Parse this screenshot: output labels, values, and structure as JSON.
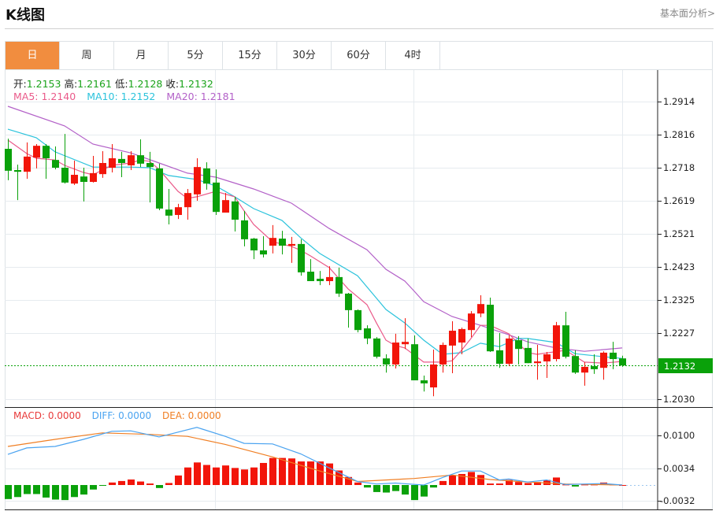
{
  "header": {
    "title": "K线图",
    "analysis_link": "基本面分析>"
  },
  "tabs": [
    {
      "label": "日",
      "active": true
    },
    {
      "label": "周"
    },
    {
      "label": "月"
    },
    {
      "label": "5分"
    },
    {
      "label": "15分"
    },
    {
      "label": "30分"
    },
    {
      "label": "60分"
    },
    {
      "label": "4时"
    }
  ],
  "ohlc": {
    "open_label": "开:",
    "open": "1.2153",
    "high_label": "高:",
    "high": "1.2161",
    "low_label": "低:",
    "low": "1.2128",
    "close_label": "收:",
    "close": "1.2132"
  },
  "ma_legend": {
    "ma5": "MA5:  1.2140",
    "ma10": "MA10:  1.2152",
    "ma20": "MA20:  1.2181"
  },
  "macd_legend": {
    "macd": "MACD: 0.0000",
    "diff": "DIFF: 0.0000",
    "dea": "DEA: 0.0000"
  },
  "colors": {
    "up": "#f2150a",
    "down": "#0aa10a",
    "ma5": "#ea5a8a",
    "ma10": "#2cc3dc",
    "ma20": "#b361c8",
    "diff": "#4aa3f0",
    "dea": "#f07f24",
    "accent": "#f18d3f"
  },
  "chart_data": [
    {
      "type": "candlestick",
      "title": "K线图",
      "price_axis_ticks": [
        "1.2914",
        "1.2816",
        "1.2718",
        "1.2619",
        "1.2521",
        "1.2423",
        "1.2325",
        "1.2227",
        "1.2030"
      ],
      "ylim": [
        1.203,
        1.2914
      ],
      "current_price": "1.2132",
      "ohlc": [
        [
          1.2774,
          1.2804,
          1.2681,
          1.2709
        ],
        [
          1.2711,
          1.2727,
          1.2622,
          1.2706
        ],
        [
          1.2706,
          1.2793,
          1.2685,
          1.2751
        ],
        [
          1.2748,
          1.2788,
          1.2716,
          1.2783
        ],
        [
          1.2783,
          1.2788,
          1.2685,
          1.2746
        ],
        [
          1.2741,
          1.2781,
          1.2713,
          1.2718
        ],
        [
          1.2718,
          1.2818,
          1.2671,
          1.2674
        ],
        [
          1.2671,
          1.2739,
          1.2667,
          1.2697
        ],
        [
          1.2692,
          1.2718,
          1.2618,
          1.2676
        ],
        [
          1.2676,
          1.2753,
          1.2674,
          1.2702
        ],
        [
          1.2699,
          1.2767,
          1.2688,
          1.2732
        ],
        [
          1.2718,
          1.2788,
          1.2704,
          1.2746
        ],
        [
          1.2744,
          1.2765,
          1.269,
          1.2732
        ],
        [
          1.2725,
          1.2767,
          1.2711,
          1.2755
        ],
        [
          1.2755,
          1.2802,
          1.272,
          1.273
        ],
        [
          1.2732,
          1.2765,
          1.2615,
          1.272
        ],
        [
          1.2716,
          1.273,
          1.2592,
          1.2597
        ],
        [
          1.2594,
          1.2655,
          1.255,
          1.2576
        ],
        [
          1.2578,
          1.2611,
          1.2566,
          1.2601
        ],
        [
          1.2601,
          1.2655,
          1.2564,
          1.2643
        ],
        [
          1.2639,
          1.2746,
          1.262,
          1.272
        ],
        [
          1.2716,
          1.2734,
          1.2653,
          1.2671
        ],
        [
          1.2674,
          1.2713,
          1.2578,
          1.2587
        ],
        [
          1.2585,
          1.2643,
          1.2585,
          1.2622
        ],
        [
          1.2618,
          1.2632,
          1.2529,
          1.2564
        ],
        [
          1.2562,
          1.259,
          1.2485,
          1.2506
        ],
        [
          1.2508,
          1.251,
          1.2447,
          1.2473
        ],
        [
          1.2473,
          1.2515,
          1.2452,
          1.2461
        ],
        [
          1.2487,
          1.2548,
          1.2464,
          1.251
        ],
        [
          1.2508,
          1.2531,
          1.2461,
          1.2487
        ],
        [
          1.2487,
          1.2513,
          1.2436,
          1.2492
        ],
        [
          1.2492,
          1.2506,
          1.2398,
          1.2408
        ],
        [
          1.241,
          1.2447,
          1.2382,
          1.2382
        ],
        [
          1.2389,
          1.2412,
          1.237,
          1.2382
        ],
        [
          1.2382,
          1.2426,
          1.237,
          1.2394
        ],
        [
          1.2394,
          1.2422,
          1.2335,
          1.2345
        ],
        [
          1.2345,
          1.2347,
          1.2244,
          1.2296
        ],
        [
          1.2296,
          1.2298,
          1.223,
          1.2237
        ],
        [
          1.2242,
          1.2251,
          1.2195,
          1.2212
        ],
        [
          1.2212,
          1.2216,
          1.2153,
          1.2158
        ],
        [
          1.2153,
          1.2165,
          1.2111,
          1.2135
        ],
        [
          1.2135,
          1.2226,
          1.2123,
          1.22
        ],
        [
          1.2195,
          1.2272,
          1.2181,
          1.2202
        ],
        [
          1.2195,
          1.2221,
          1.2088,
          1.2088
        ],
        [
          1.2088,
          1.2102,
          1.2055,
          1.2079
        ],
        [
          1.2067,
          1.2179,
          1.2041,
          1.2135
        ],
        [
          1.2135,
          1.22,
          1.2111,
          1.2193
        ],
        [
          1.2191,
          1.2263,
          1.2109,
          1.2235
        ],
        [
          1.22,
          1.2244,
          1.2165,
          1.224
        ],
        [
          1.2237,
          1.2293,
          1.2216,
          1.2286
        ],
        [
          1.2286,
          1.234,
          1.2275,
          1.2314
        ],
        [
          1.2312,
          1.2333,
          1.2172,
          1.2174
        ],
        [
          1.2177,
          1.2228,
          1.2125,
          1.2137
        ],
        [
          1.2137,
          1.2221,
          1.213,
          1.2212
        ],
        [
          1.2207,
          1.2219,
          1.2135,
          1.2181
        ],
        [
          1.2184,
          1.2212,
          1.2139,
          1.2139
        ],
        [
          1.2139,
          1.2193,
          1.209,
          1.2144
        ],
        [
          1.2144,
          1.2172,
          1.2095,
          1.2165
        ],
        [
          1.2151,
          1.2261,
          1.2144,
          1.2251
        ],
        [
          1.2251,
          1.2291,
          1.2153,
          1.2158
        ],
        [
          1.216,
          1.2177,
          1.2107,
          1.2111
        ],
        [
          1.2111,
          1.2142,
          1.2072,
          1.2128
        ],
        [
          1.213,
          1.2165,
          1.2107,
          1.2121
        ],
        [
          1.2125,
          1.2174,
          1.209,
          1.217
        ],
        [
          1.217,
          1.2202,
          1.2121,
          1.2151
        ],
        [
          1.2153,
          1.2161,
          1.2128,
          1.2132
        ]
      ],
      "ma5": [
        [
          0,
          1.28
        ],
        [
          2,
          1.276
        ],
        [
          3,
          1.2746
        ],
        [
          5,
          1.2741
        ],
        [
          6,
          1.2725
        ],
        [
          8,
          1.2704
        ],
        [
          9,
          1.2697
        ],
        [
          11,
          1.2725
        ],
        [
          13,
          1.2732
        ],
        [
          14,
          1.2741
        ],
        [
          15,
          1.2737
        ],
        [
          16,
          1.2713
        ],
        [
          18,
          1.2648
        ],
        [
          19,
          1.2627
        ],
        [
          20,
          1.2632
        ],
        [
          22,
          1.2648
        ],
        [
          24,
          1.2632
        ],
        [
          25,
          1.259
        ],
        [
          26,
          1.255
        ],
        [
          28,
          1.2499
        ],
        [
          30,
          1.2485
        ],
        [
          31,
          1.2473
        ],
        [
          32,
          1.2457
        ],
        [
          34,
          1.2422
        ],
        [
          36,
          1.2359
        ],
        [
          38,
          1.2312
        ],
        [
          39,
          1.2258
        ],
        [
          40,
          1.2207
        ],
        [
          41,
          1.2191
        ],
        [
          42,
          1.2184
        ],
        [
          44,
          1.2142
        ],
        [
          46,
          1.2142
        ],
        [
          47,
          1.2146
        ],
        [
          48,
          1.2177
        ],
        [
          49,
          1.2212
        ],
        [
          50,
          1.2251
        ],
        [
          51,
          1.2251
        ],
        [
          53,
          1.2226
        ],
        [
          55,
          1.217
        ],
        [
          56,
          1.2165
        ],
        [
          59,
          1.2177
        ],
        [
          61,
          1.2142
        ],
        [
          63,
          1.2139
        ],
        [
          65,
          1.2144
        ]
      ],
      "ma10": [
        [
          0,
          1.2832
        ],
        [
          3,
          1.2807
        ],
        [
          5,
          1.2765
        ],
        [
          9,
          1.272
        ],
        [
          13,
          1.272
        ],
        [
          15,
          1.2718
        ],
        [
          17,
          1.2695
        ],
        [
          20,
          1.2683
        ],
        [
          22,
          1.2664
        ],
        [
          24,
          1.2632
        ],
        [
          26,
          1.2597
        ],
        [
          29,
          1.2562
        ],
        [
          31,
          1.251
        ],
        [
          33,
          1.2464
        ],
        [
          37,
          1.2398
        ],
        [
          40,
          1.2298
        ],
        [
          42,
          1.2258
        ],
        [
          44,
          1.2207
        ],
        [
          46,
          1.2165
        ],
        [
          48,
          1.217
        ],
        [
          50,
          1.2198
        ],
        [
          52,
          1.2188
        ],
        [
          54,
          1.2212
        ],
        [
          55,
          1.2212
        ],
        [
          58,
          1.22
        ],
        [
          60,
          1.2167
        ],
        [
          63,
          1.2158
        ],
        [
          65,
          1.2153
        ]
      ],
      "ma20": [
        [
          0,
          1.29
        ],
        [
          6,
          1.2842
        ],
        [
          9,
          1.2788
        ],
        [
          13,
          1.2762
        ],
        [
          16,
          1.2732
        ],
        [
          19,
          1.2702
        ],
        [
          22,
          1.269
        ],
        [
          26,
          1.2655
        ],
        [
          30,
          1.2613
        ],
        [
          34,
          1.2538
        ],
        [
          38,
          1.2475
        ],
        [
          40,
          1.2417
        ],
        [
          42,
          1.2382
        ],
        [
          43,
          1.2352
        ],
        [
          44,
          1.2321
        ],
        [
          47,
          1.2277
        ],
        [
          50,
          1.2251
        ],
        [
          53,
          1.2223
        ],
        [
          55,
          1.2202
        ],
        [
          58,
          1.2184
        ],
        [
          61,
          1.2174
        ],
        [
          65,
          1.2184
        ]
      ]
    },
    {
      "type": "bar",
      "title": "MACD",
      "axis_ticks": [
        "0.0100",
        "0.0034",
        "-0.0032"
      ],
      "macd": [
        -0.0028,
        -0.0024,
        -0.0018,
        -0.0018,
        -0.0025,
        -0.0029,
        -0.003,
        -0.0024,
        -0.0019,
        -0.0009,
        -0.0001,
        0.0005,
        0.0008,
        0.0011,
        0.0007,
        0.0003,
        -0.0006,
        0.0004,
        0.0019,
        0.0035,
        0.0045,
        0.004,
        0.0035,
        0.0039,
        0.0034,
        0.0031,
        0.0035,
        0.0044,
        0.0054,
        0.0054,
        0.0053,
        0.0047,
        0.0047,
        0.0047,
        0.0043,
        0.0029,
        0.0016,
        0.0005,
        -0.0005,
        -0.0014,
        -0.0015,
        -0.0012,
        -0.0019,
        -0.003,
        -0.0023,
        -0.0005,
        0.0008,
        0.0019,
        0.0022,
        0.0026,
        0.002,
        0.0003,
        0.0003,
        0.001,
        0.0006,
        0.0004,
        0.0006,
        0.001,
        0.0015,
        0.0001,
        -0.0003,
        0.0001,
        0.0001,
        0.0005,
        0.0001,
        0.0
      ],
      "diff": [
        [
          0,
          0.0061
        ],
        [
          2,
          0.0074
        ],
        [
          5,
          0.0077
        ],
        [
          8,
          0.0091
        ],
        [
          11,
          0.0107
        ],
        [
          13,
          0.0108
        ],
        [
          16,
          0.0096
        ],
        [
          20,
          0.0115
        ],
        [
          23,
          0.0097
        ],
        [
          25,
          0.0083
        ],
        [
          28,
          0.0082
        ],
        [
          31,
          0.0062
        ],
        [
          34,
          0.0034
        ],
        [
          37,
          0.0007
        ],
        [
          39,
          0.0002
        ],
        [
          41,
          0.0004
        ],
        [
          44,
          0.0
        ],
        [
          46,
          0.0015
        ],
        [
          48,
          0.0028
        ],
        [
          50,
          0.0028
        ],
        [
          52,
          0.001
        ],
        [
          53,
          0.0012
        ],
        [
          55,
          0.0006
        ],
        [
          57,
          0.001
        ],
        [
          59,
          0.0001
        ],
        [
          63,
          0.0003
        ],
        [
          65,
          0.0
        ]
      ],
      "dea": [
        [
          0,
          0.0077
        ],
        [
          5,
          0.0091
        ],
        [
          10,
          0.0104
        ],
        [
          15,
          0.0101
        ],
        [
          19,
          0.0097
        ],
        [
          23,
          0.0081
        ],
        [
          28,
          0.0056
        ],
        [
          33,
          0.0028
        ],
        [
          37,
          0.0007
        ],
        [
          43,
          0.0013
        ],
        [
          47,
          0.002
        ],
        [
          51,
          0.0011
        ],
        [
          54,
          0.0007
        ],
        [
          59,
          0.0002
        ],
        [
          65,
          0.0
        ]
      ]
    }
  ]
}
